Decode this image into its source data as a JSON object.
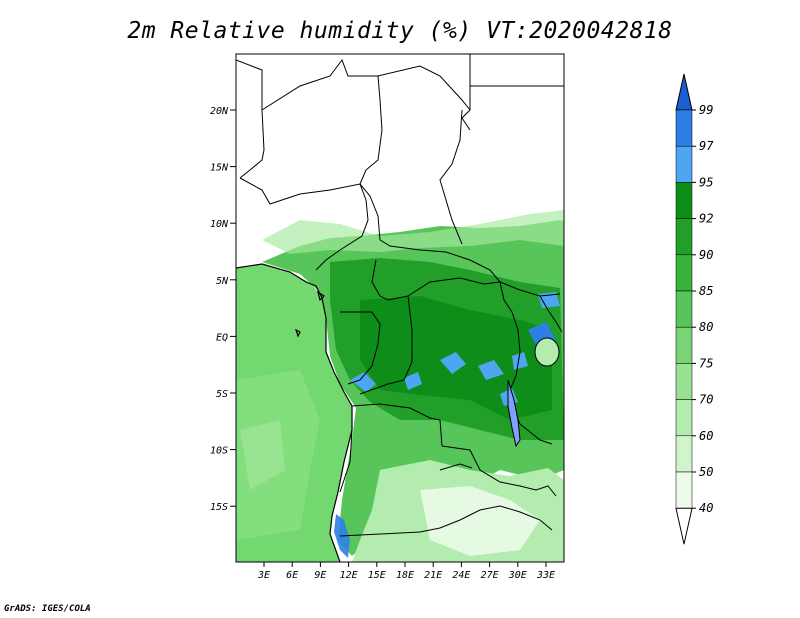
{
  "title": "2m Relative humidity (%) VT:2020042818",
  "credit": "GrADS: IGES/COLA",
  "map": {
    "lat_ticks": [
      "20N",
      "15N",
      "10N",
      "5N",
      "EQ",
      "5S",
      "10S",
      "15S"
    ],
    "lon_ticks": [
      "3E",
      "6E",
      "9E",
      "12E",
      "15E",
      "18E",
      "21E",
      "24E",
      "27E",
      "30E",
      "33E"
    ],
    "lat_range": [
      -20,
      24.5
    ],
    "lon_range": [
      0,
      35
    ]
  },
  "colorbar": {
    "labels": [
      "99",
      "97",
      "95",
      "92",
      "90",
      "85",
      "80",
      "75",
      "70",
      "60",
      "50",
      "40"
    ],
    "colors": [
      "#1a5fd0",
      "#2d7fe6",
      "#4ea6f2",
      "#0e8e19",
      "#219f29",
      "#3ab33d",
      "#58c55a",
      "#78d474",
      "#98e092",
      "#b4ebae",
      "#d0f4cb",
      "#eefbea"
    ]
  }
}
